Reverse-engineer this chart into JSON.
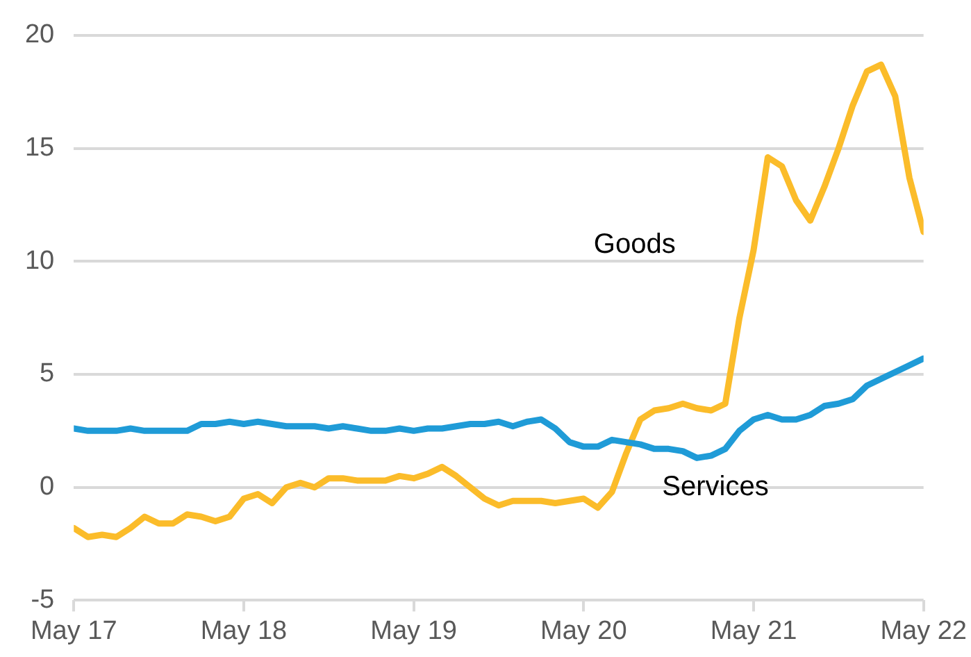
{
  "chart_data": {
    "type": "line",
    "x": [
      "2017-05",
      "2017-06",
      "2017-07",
      "2017-08",
      "2017-09",
      "2017-10",
      "2017-11",
      "2017-12",
      "2018-01",
      "2018-02",
      "2018-03",
      "2018-04",
      "2018-05",
      "2018-06",
      "2018-07",
      "2018-08",
      "2018-09",
      "2018-10",
      "2018-11",
      "2018-12",
      "2019-01",
      "2019-02",
      "2019-03",
      "2019-04",
      "2019-05",
      "2019-06",
      "2019-07",
      "2019-08",
      "2019-09",
      "2019-10",
      "2019-11",
      "2019-12",
      "2020-01",
      "2020-02",
      "2020-03",
      "2020-04",
      "2020-05",
      "2020-06",
      "2020-07",
      "2020-08",
      "2020-09",
      "2020-10",
      "2020-11",
      "2020-12",
      "2021-01",
      "2021-02",
      "2021-03",
      "2021-04",
      "2021-05",
      "2021-06",
      "2021-07",
      "2021-08",
      "2021-09",
      "2021-10",
      "2021-11",
      "2021-12",
      "2022-01",
      "2022-02",
      "2022-03",
      "2022-04",
      "2022-05"
    ],
    "series": [
      {
        "name": "Goods",
        "color": "#fbbc2a",
        "values": [
          -1.8,
          -2.2,
          -2.1,
          -2.2,
          -1.8,
          -1.3,
          -1.6,
          -1.6,
          -1.2,
          -1.3,
          -1.5,
          -1.3,
          -0.5,
          -0.3,
          -0.7,
          0.0,
          0.2,
          0.0,
          0.4,
          0.4,
          0.3,
          0.3,
          0.3,
          0.5,
          0.4,
          0.6,
          0.9,
          0.5,
          0.0,
          -0.5,
          -0.8,
          -0.6,
          -0.6,
          -0.6,
          -0.7,
          -0.6,
          -0.5,
          -0.9,
          -0.2,
          1.5,
          3.0,
          3.4,
          3.5,
          3.7,
          3.5,
          3.4,
          3.7,
          7.5,
          10.5,
          14.6,
          14.2,
          12.7,
          11.8,
          13.3,
          15.0,
          16.9,
          18.4,
          18.7,
          17.3,
          13.7,
          11.3
        ]
      },
      {
        "name": "Services",
        "color": "#1f9bd7",
        "values": [
          2.6,
          2.5,
          2.5,
          2.5,
          2.6,
          2.5,
          2.5,
          2.5,
          2.5,
          2.8,
          2.8,
          2.9,
          2.8,
          2.9,
          2.8,
          2.7,
          2.7,
          2.7,
          2.6,
          2.7,
          2.6,
          2.5,
          2.5,
          2.6,
          2.5,
          2.6,
          2.6,
          2.7,
          2.8,
          2.8,
          2.9,
          2.7,
          2.9,
          3.0,
          2.6,
          2.0,
          1.8,
          1.8,
          2.1,
          2.0,
          1.9,
          1.7,
          1.7,
          1.6,
          1.3,
          1.4,
          1.7,
          2.5,
          3.0,
          3.2,
          3.0,
          3.0,
          3.2,
          3.6,
          3.7,
          3.9,
          4.5,
          4.8,
          5.1,
          5.4,
          5.7
        ]
      }
    ],
    "xlim": [
      "2017-05",
      "2022-05"
    ],
    "xticks": [
      {
        "value": "2017-05",
        "label": "May 17"
      },
      {
        "value": "2018-05",
        "label": "May 18"
      },
      {
        "value": "2019-05",
        "label": "May 19"
      },
      {
        "value": "2020-05",
        "label": "May 20"
      },
      {
        "value": "2021-05",
        "label": "May 21"
      },
      {
        "value": "2022-05",
        "label": "May 22"
      }
    ],
    "ylim": [
      -5,
      20
    ],
    "yticks": [
      -5,
      0,
      5,
      10,
      15,
      20
    ],
    "grid": "y",
    "legend": false,
    "marker": "none",
    "line_style": "solid"
  }
}
